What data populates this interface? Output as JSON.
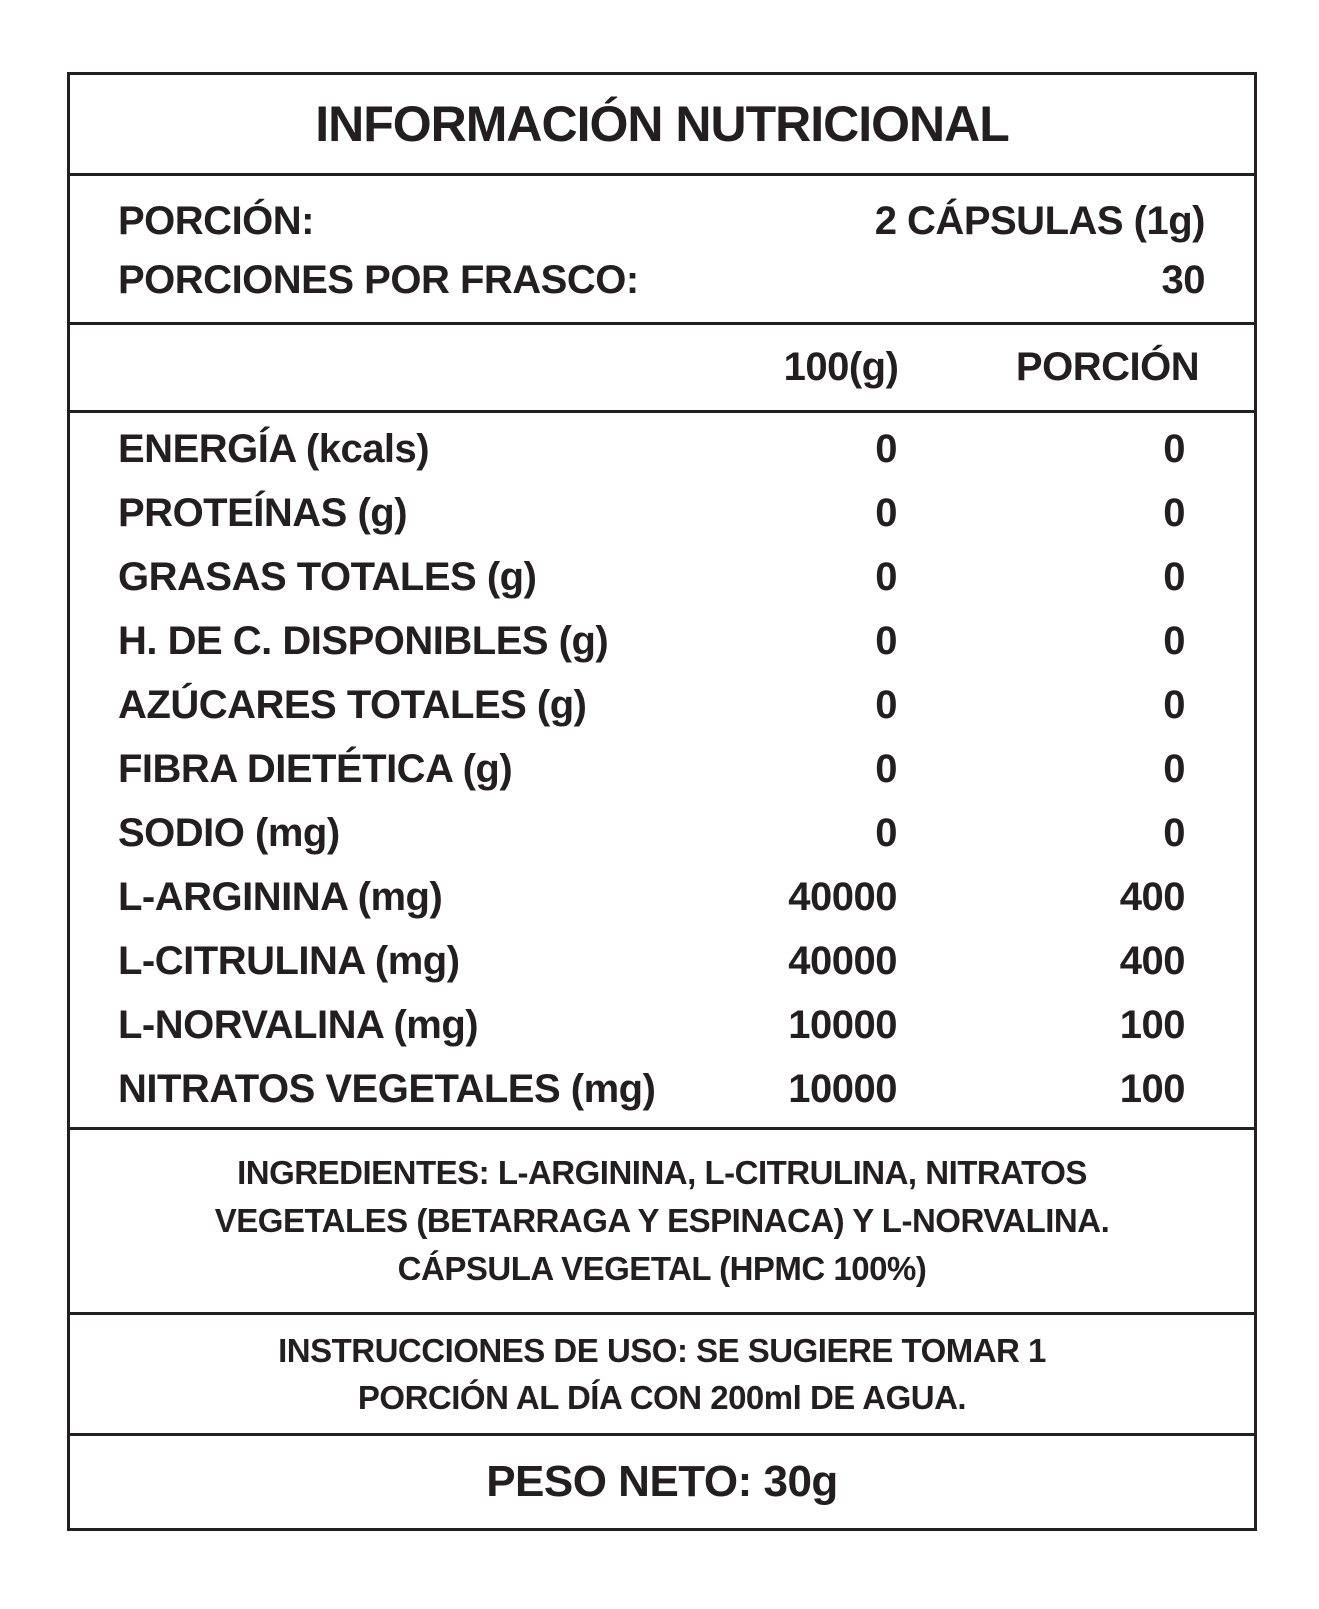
{
  "colors": {
    "text": "#231f20",
    "border": "#231f20",
    "background": "#ffffff"
  },
  "title": "INFORMACIÓN NUTRICIONAL",
  "serving": {
    "portion_label": "PORCIÓN:",
    "portion_value": "2 CÁPSULAS (1g)",
    "per_container_label": "PORCIONES POR FRASCO:",
    "per_container_value": "30"
  },
  "table": {
    "col_100_header": "100(g)",
    "col_portion_header": "PORCIÓN",
    "rows": [
      {
        "nutrient": "ENERGÍA (kcals)",
        "per_100": "0",
        "per_portion": "0"
      },
      {
        "nutrient": "PROTEÍNAS (g)",
        "per_100": "0",
        "per_portion": "0"
      },
      {
        "nutrient": "GRASAS TOTALES (g)",
        "per_100": "0",
        "per_portion": "0"
      },
      {
        "nutrient": "H. DE C. DISPONIBLES (g)",
        "per_100": "0",
        "per_portion": "0"
      },
      {
        "nutrient": "AZÚCARES TOTALES (g)",
        "per_100": "0",
        "per_portion": "0"
      },
      {
        "nutrient": "FIBRA DIETÉTICA (g)",
        "per_100": "0",
        "per_portion": "0"
      },
      {
        "nutrient": "SODIO (mg)",
        "per_100": "0",
        "per_portion": "0"
      },
      {
        "nutrient": "L-ARGININA (mg)",
        "per_100": "40000",
        "per_portion": "400"
      },
      {
        "nutrient": "L-CITRULINA (mg)",
        "per_100": "40000",
        "per_portion": "400"
      },
      {
        "nutrient": "L-NORVALINA (mg)",
        "per_100": "10000",
        "per_portion": "100"
      },
      {
        "nutrient": "NITRATOS VEGETALES (mg)",
        "per_100": "10000",
        "per_portion": "100"
      }
    ]
  },
  "ingredients": {
    "lines": [
      "INGREDIENTES: L-ARGININA, L-CITRULINA, NITRATOS",
      "VEGETALES (BETARRAGA Y ESPINACA) Y L-NORVALINA.",
      "CÁPSULA VEGETAL (HPMC 100%)"
    ]
  },
  "instructions": {
    "lines": [
      "INSTRUCCIONES DE USO: SE SUGIERE TOMAR 1",
      "PORCIÓN AL DÍA CON 200ml DE AGUA."
    ]
  },
  "net_weight": "PESO NETO: 30g"
}
